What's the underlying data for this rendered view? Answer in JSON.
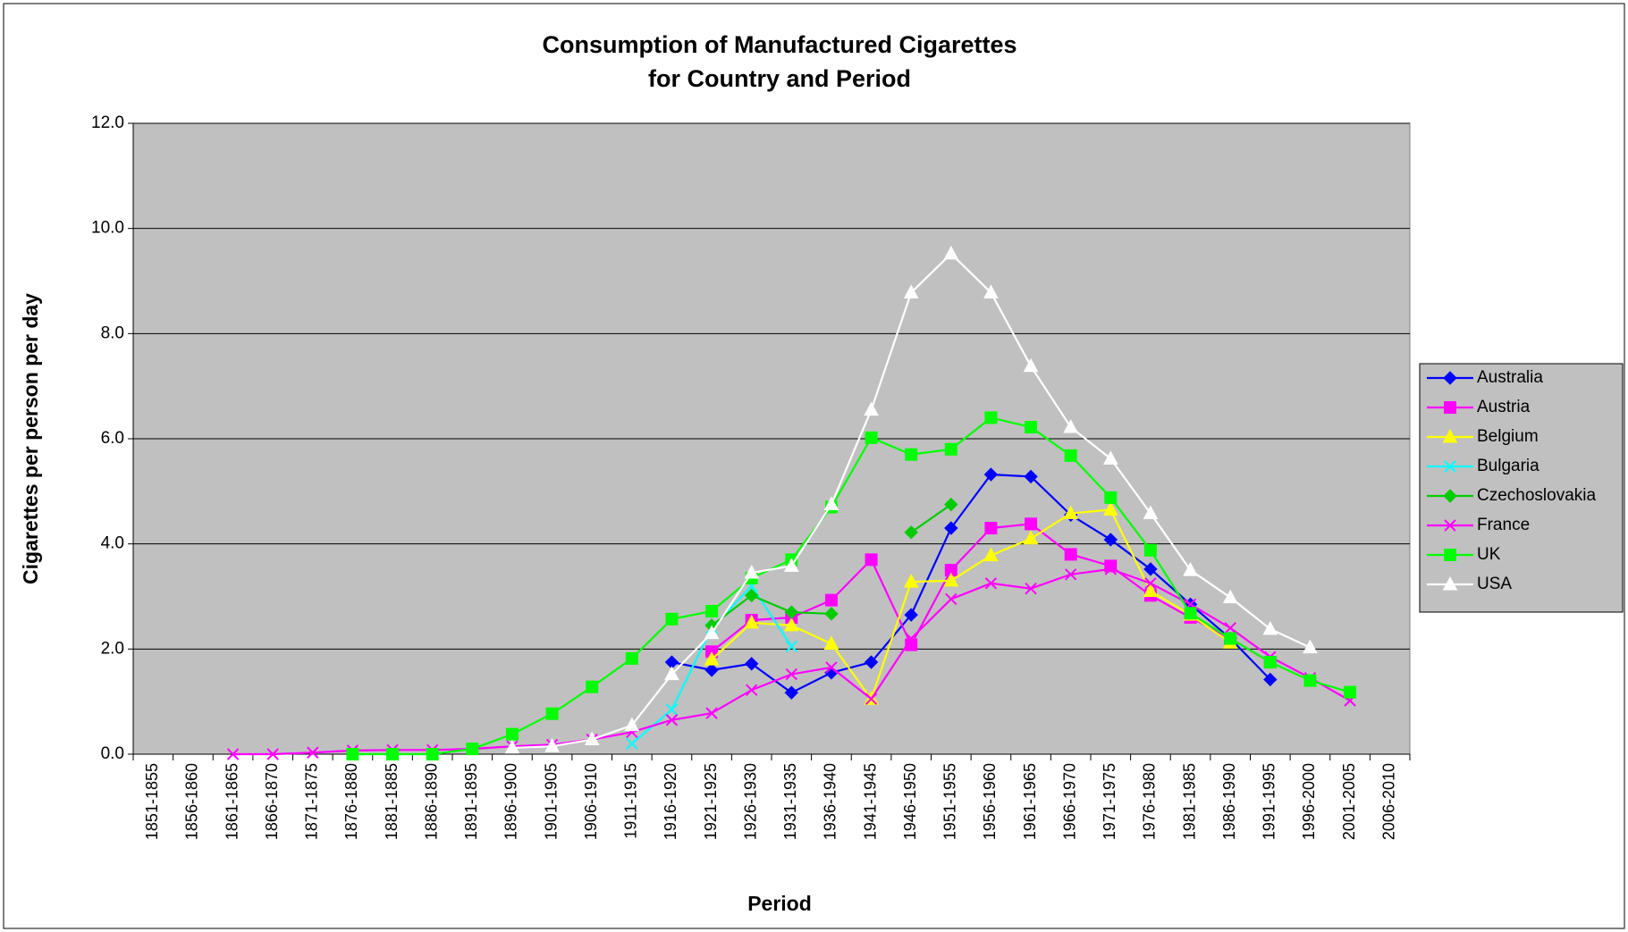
{
  "chart_data": {
    "type": "line",
    "title": [
      "Consumption of Manufactured Cigarettes",
      "for Country and Period"
    ],
    "x_label": "Period",
    "y_label": "Cigarettes per person per day",
    "categories": [
      "1851-1855",
      "1856-1860",
      "1861-1865",
      "1866-1870",
      "1871-1875",
      "1876-1880",
      "1881-1885",
      "1886-1890",
      "1891-1895",
      "1896-1900",
      "1901-1905",
      "1906-1910",
      "1911-1915",
      "1916-1920",
      "1921-1925",
      "1926-1930",
      "1931-1935",
      "1936-1940",
      "1941-1945",
      "1946-1950",
      "1951-1955",
      "1956-1960",
      "1961-1965",
      "1966-1970",
      "1971-1975",
      "1976-1980",
      "1981-1985",
      "1986-1990",
      "1991-1995",
      "1996-2000",
      "2001-2005",
      "2006-2010"
    ],
    "ylim": [
      0,
      12
    ],
    "yticks": [
      {
        "value": 0,
        "label": "0.0"
      },
      {
        "value": 2,
        "label": "2.0"
      },
      {
        "value": 4,
        "label": "4.0"
      },
      {
        "value": 6,
        "label": "6.0"
      },
      {
        "value": 8,
        "label": "8.0"
      },
      {
        "value": 10,
        "label": "10.0"
      },
      {
        "value": 12,
        "label": "12.0"
      }
    ],
    "grid": true,
    "legend": "right",
    "background": "#c0c0c0",
    "series": [
      {
        "name": "Australia",
        "color": "#0000ff",
        "marker": "diamond",
        "values": [
          null,
          null,
          null,
          null,
          null,
          null,
          null,
          null,
          null,
          null,
          null,
          null,
          null,
          1.75,
          1.6,
          1.72,
          1.17,
          1.55,
          1.75,
          2.65,
          4.3,
          5.32,
          5.28,
          4.55,
          4.08,
          3.52,
          2.85,
          2.2,
          1.42,
          null,
          null,
          null
        ]
      },
      {
        "name": "Austria",
        "color": "#ff00ff",
        "marker": "square",
        "values": [
          null,
          null,
          null,
          null,
          null,
          null,
          null,
          null,
          null,
          null,
          null,
          null,
          null,
          null,
          1.95,
          2.55,
          2.6,
          2.93,
          3.7,
          2.08,
          3.5,
          4.3,
          4.38,
          3.8,
          3.58,
          3.02,
          2.6,
          2.2,
          1.75,
          null,
          null,
          null
        ]
      },
      {
        "name": "Belgium",
        "color": "#ffff00",
        "marker": "triangle",
        "values": [
          null,
          null,
          null,
          null,
          null,
          null,
          null,
          null,
          null,
          null,
          null,
          null,
          null,
          null,
          1.8,
          2.5,
          2.45,
          2.1,
          1.05,
          3.28,
          3.3,
          3.78,
          4.1,
          4.58,
          4.65,
          3.1,
          2.65,
          2.12,
          null,
          null,
          null,
          null
        ]
      },
      {
        "name": "Bulgaria",
        "color": "#00ffff",
        "marker": "x",
        "values": [
          null,
          null,
          null,
          null,
          null,
          null,
          null,
          null,
          null,
          null,
          null,
          null,
          0.2,
          0.85,
          2.4,
          3.2,
          2.05,
          null,
          null,
          null,
          null,
          null,
          null,
          null,
          null,
          null,
          null,
          null,
          null,
          null,
          null,
          null
        ]
      },
      {
        "name": "Czechoslovakia",
        "color": "#00cc00",
        "marker": "diamond",
        "values": [
          null,
          null,
          null,
          null,
          null,
          null,
          null,
          null,
          null,
          null,
          null,
          null,
          null,
          null,
          2.45,
          3.02,
          2.7,
          2.67,
          null,
          4.22,
          4.75,
          null,
          null,
          null,
          null,
          null,
          null,
          null,
          null,
          null,
          null,
          null
        ]
      },
      {
        "name": "France",
        "color": "#ff00ff",
        "marker": "x",
        "values": [
          null,
          null,
          0,
          0,
          0.03,
          0.07,
          0.08,
          0.08,
          0.1,
          0.15,
          0.18,
          0.28,
          0.42,
          0.65,
          0.78,
          1.22,
          1.52,
          1.65,
          1.05,
          2.2,
          2.95,
          3.25,
          3.15,
          3.42,
          3.52,
          3.25,
          2.85,
          2.4,
          1.85,
          1.45,
          1.02,
          null
        ]
      },
      {
        "name": "UK",
        "color": "#00ff00",
        "marker": "square",
        "values": [
          null,
          null,
          null,
          null,
          null,
          0,
          0,
          0,
          0.1,
          0.38,
          0.77,
          1.28,
          1.82,
          2.57,
          2.72,
          3.35,
          3.7,
          4.7,
          6.02,
          5.7,
          5.8,
          6.4,
          6.22,
          5.68,
          4.88,
          3.88,
          2.68,
          2.2,
          1.75,
          1.4,
          1.18,
          null
        ]
      },
      {
        "name": "USA",
        "color": "#ffffff",
        "marker": "triangle",
        "values": [
          null,
          null,
          null,
          null,
          null,
          null,
          null,
          null,
          null,
          0.12,
          0.15,
          0.28,
          0.55,
          1.52,
          2.3,
          3.45,
          3.58,
          4.75,
          6.55,
          8.78,
          9.52,
          8.78,
          7.38,
          6.22,
          5.62,
          4.58,
          3.5,
          2.98,
          2.38,
          2.03,
          null,
          null
        ]
      }
    ]
  }
}
